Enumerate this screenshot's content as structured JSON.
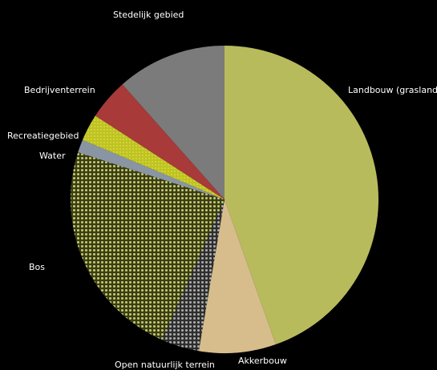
{
  "chart_data": {
    "type": "pie",
    "start_angle_deg": 0,
    "direction": "clockwise",
    "slices": [
      {
        "label": "Landbouw (grasland)",
        "value": 42.5,
        "color": "#b8bb5c",
        "pattern": "none"
      },
      {
        "label": "Akkerbouw",
        "value": 7.7,
        "color": "#d6bd8b",
        "pattern": "none"
      },
      {
        "label": "Open natuurlijk terrein",
        "value": 3.8,
        "color": "#8f918f",
        "pattern": "dots"
      },
      {
        "label": "Bos",
        "value": 22.2,
        "color": "#a9b04c",
        "pattern": "dots"
      },
      {
        "label": "Water",
        "value": 1.3,
        "color": "#8a95a3",
        "pattern": "none"
      },
      {
        "label": "Recreatiegebied",
        "value": 2.7,
        "color": "#cdd12f",
        "pattern": "dots"
      },
      {
        "label": "Bedrijventerrein",
        "value": 4.1,
        "color": "#a83a3a",
        "pattern": "none"
      },
      {
        "label": "Stedelijk gebied",
        "value": 11.0,
        "color": "#7b7b7b",
        "pattern": "none"
      }
    ]
  }
}
